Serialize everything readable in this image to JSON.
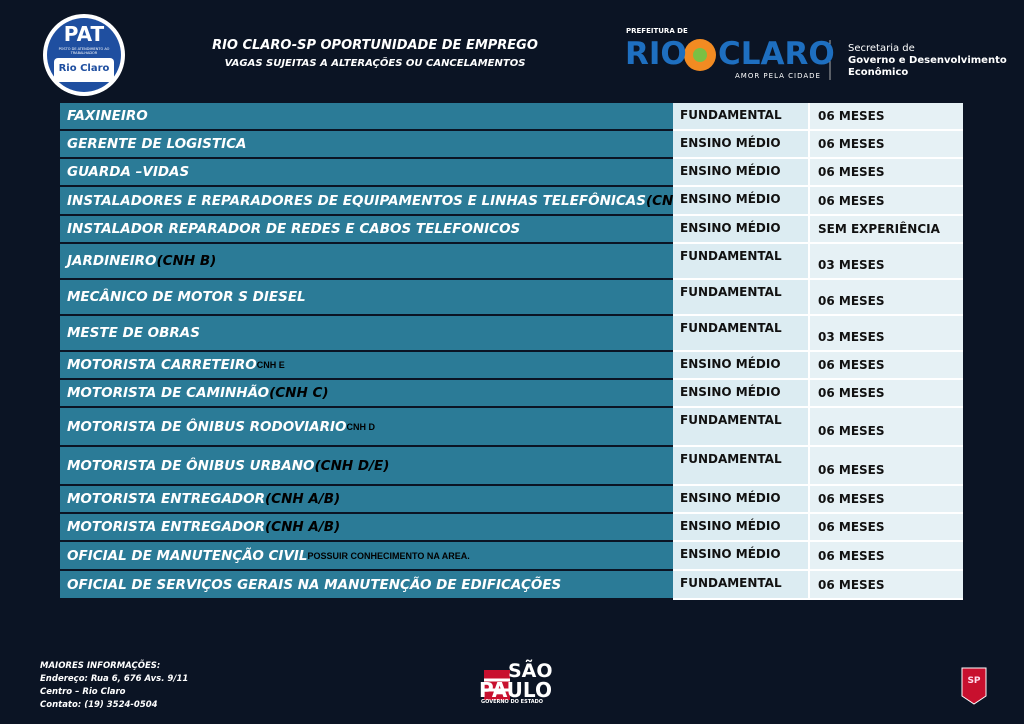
{
  "header": {
    "title": "RIO CLARO-SP OPORTUNIDADE DE EMPREGO",
    "subtitle": "VAGAS SUJEITAS A ALTERAÇÕES OU CANCELAMENTOS"
  },
  "pat_logo": {
    "name": "PAT",
    "tagline": "POSTO DE ATENDIMENTO AO TRABALHADOR",
    "city": "Rio Claro"
  },
  "city_logo": {
    "prefix": "PREFEITURA DE",
    "rio": "RIO",
    "claro": "CLARO",
    "slogan": "AMOR PELA CIDADE",
    "dept_1": "Secretaria de",
    "dept_2": "Governo e Desenvolvimento",
    "dept_3": "Econômico"
  },
  "table": {
    "rows": [
      [
        "FAXINEIRO",
        null,
        "FUNDAMENTAL",
        "06 MESES"
      ],
      [
        "GERENTE DE LOGISTICA",
        null,
        "ENSINO MÉDIO",
        "06 MESES"
      ],
      [
        "GUARDA –VIDAS",
        null,
        "ENSINO MÉDIO",
        "06 MESES"
      ],
      [
        "INSTALADORES E REPARADORES DE EQUIPAMENTOS E LINHAS TELEFÔNICAS ",
        "(CNH B)",
        "ENSINO MÉDIO",
        "06 MESES"
      ],
      [
        "INSTALADOR REPARADOR DE REDES E CABOS TELEFONICOS",
        null,
        "ENSINO MÉDIO",
        "SEM EXPERIÊNCIA"
      ],
      [
        "JARDINEIRO",
        "(CNH B)",
        "FUNDAMENTAL",
        "03 MESES"
      ],
      [
        "MECÂNICO DE MOTOR S DIESEL",
        null,
        "FUNDAMENTAL",
        "06 MESES"
      ],
      [
        "MESTE DE OBRAS",
        null,
        "FUNDAMENTAL",
        "03 MESES"
      ],
      [
        "MOTORISTA CARRETEIRO ",
        "CNH E",
        "ENSINO MÉDIO",
        "06 MESES"
      ],
      [
        "MOTORISTA DE CAMINHÃO",
        "(CNH C)",
        "ENSINO MÉDIO",
        "06 MESES"
      ],
      [
        "MOTORISTA DE ÔNIBUS RODOVIARIO ",
        "CNH D",
        "FUNDAMENTAL",
        "06 MESES"
      ],
      [
        "MOTORISTA DE ÔNIBUS URBANO",
        "(CNH D/E)",
        "FUNDAMENTAL",
        "06 MESES"
      ],
      [
        "MOTORISTA ENTREGADOR",
        "(CNH A/B)",
        "ENSINO MÉDIO",
        "06 MESES"
      ],
      [
        "MOTORISTA ENTREGADOR",
        "(CNH A/B)",
        "ENSINO MÉDIO",
        "06 MESES"
      ],
      [
        "OFICIAL DE MANUTENÇÃO CIVIL ",
        "POSSUIR CONHECIMENTO NA AREA.",
        "ENSINO MÉDIO",
        "06 MESES"
      ],
      [
        "OFICIAL DE SERVIÇOS GERAIS NA MANUTENÇÃO DE EDIFICAÇÕES",
        null,
        "FUNDAMENTAL",
        "06 MESES"
      ]
    ]
  },
  "footer": {
    "info": [
      "MAIORES INFORMAÇÕES:",
      "Endereço: Rua 6, 676 Avs. 9/11",
      "Centro – Rio Claro",
      "Contato: (19) 3524-0504"
    ],
    "sp_logo": {
      "line_1": "SÃO",
      "line_2": "PAULO",
      "line_3": "GOVERNO DO ESTADO"
    },
    "crest": "SP"
  }
}
